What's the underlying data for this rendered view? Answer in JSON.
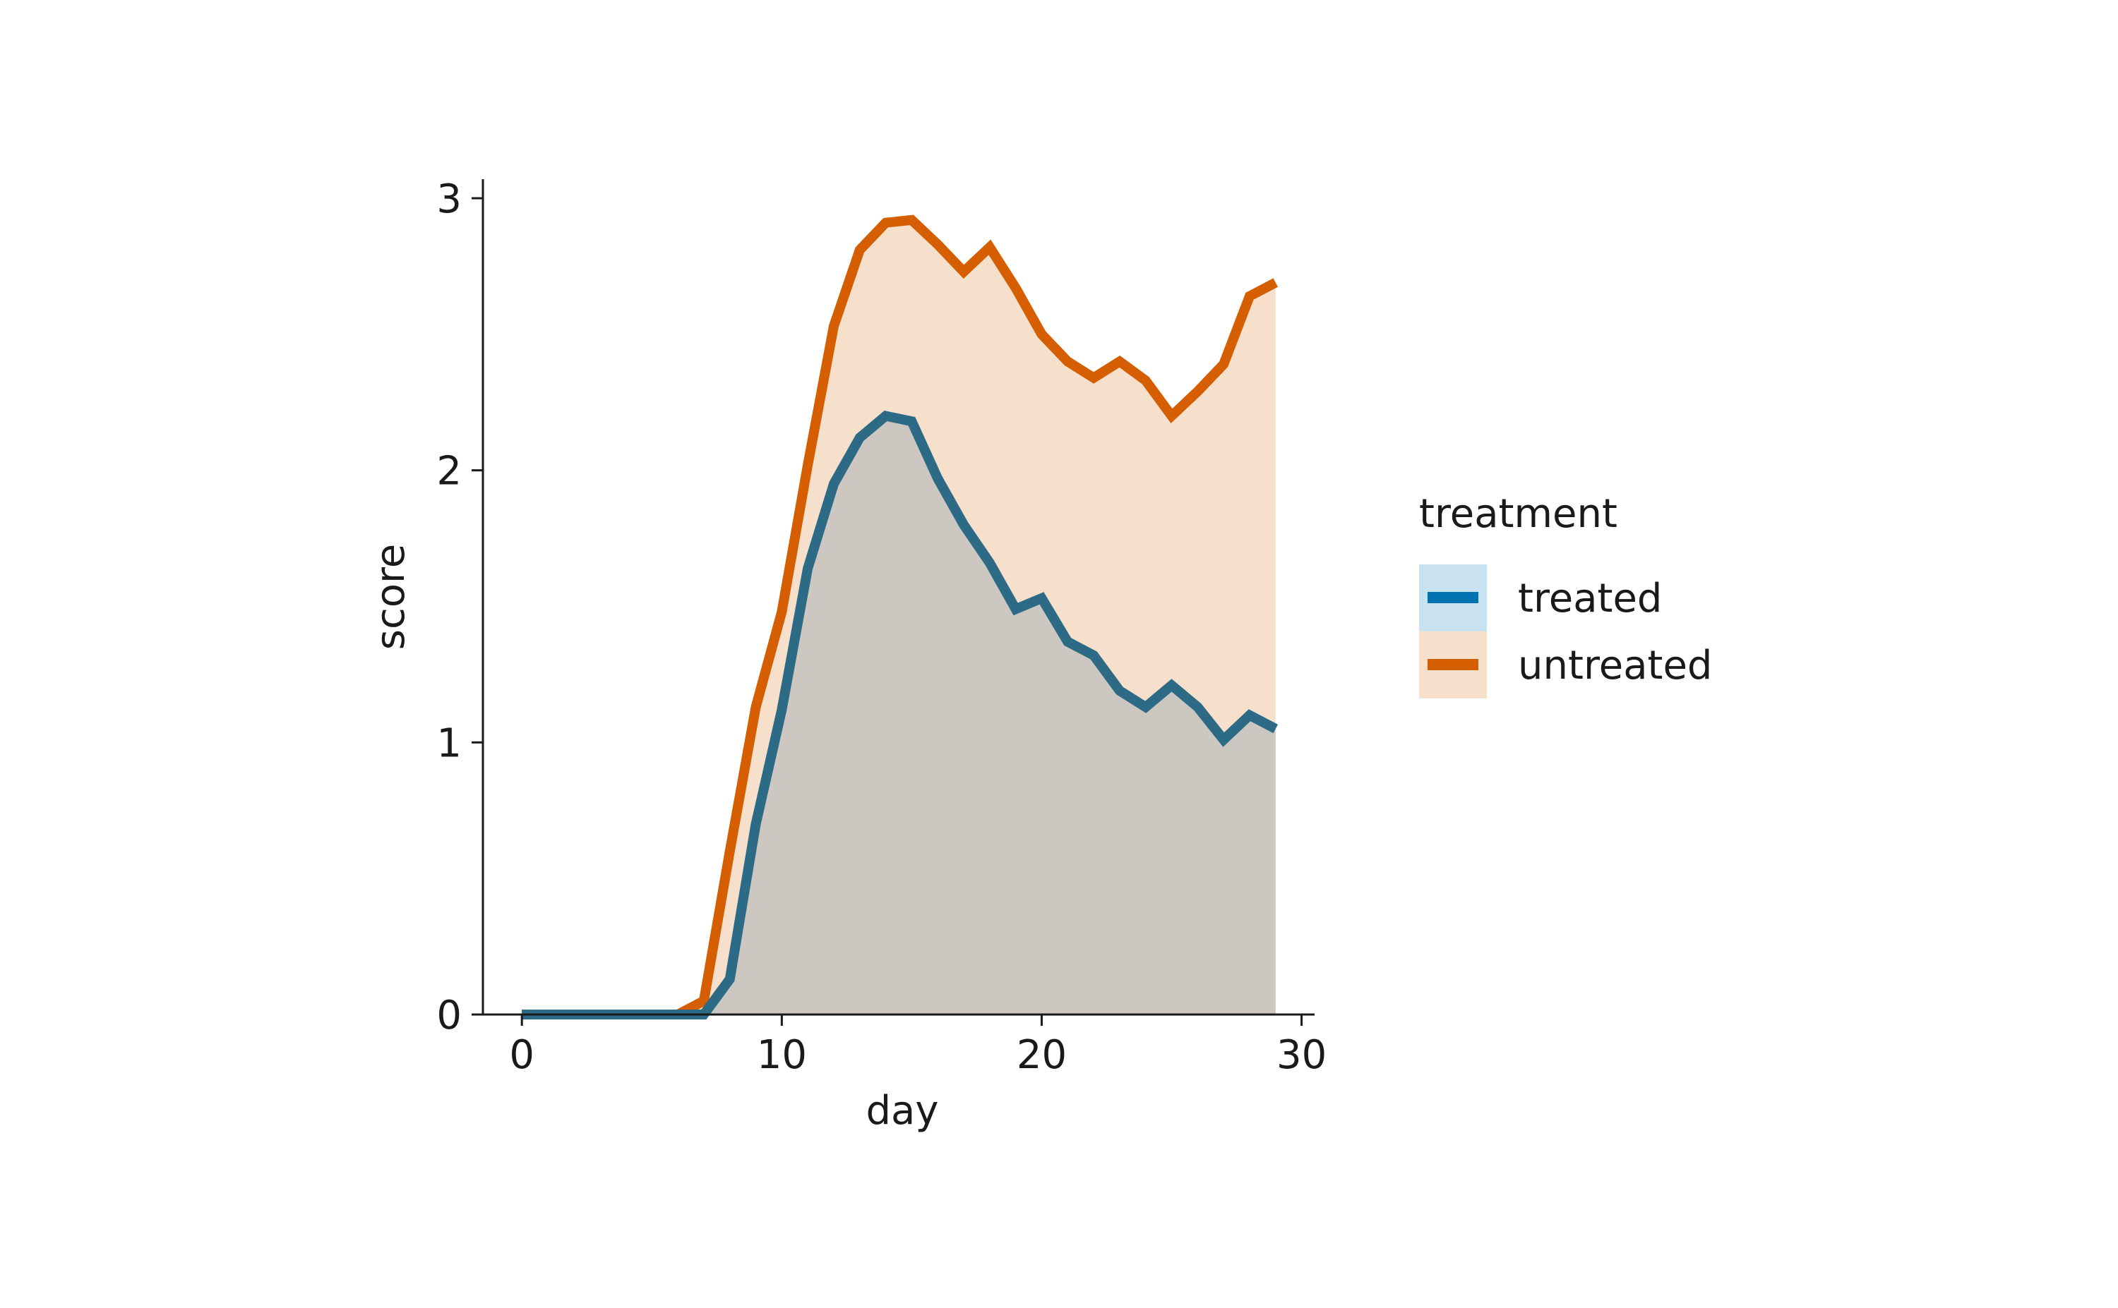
{
  "chart_data": {
    "type": "area",
    "xlabel": "day",
    "ylabel": "score",
    "xlim": [
      -1.5,
      30.5
    ],
    "ylim": [
      0,
      3.07
    ],
    "x_ticks": [
      0,
      10,
      20,
      30
    ],
    "y_ticks": [
      0,
      1,
      2,
      3
    ],
    "grid": false,
    "legend": {
      "title": "treatment",
      "placement": "right"
    },
    "x": [
      0,
      1,
      2,
      3,
      4,
      5,
      6,
      7,
      8,
      9,
      10,
      11,
      12,
      13,
      14,
      15,
      16,
      17,
      18,
      19,
      20,
      21,
      22,
      23,
      24,
      25,
      26,
      27,
      28,
      29
    ],
    "series": [
      {
        "name": "treated",
        "line_color": "#2c6a85",
        "legend_color": "#0072b2",
        "fill_color": "#c8e2f0",
        "values": [
          0,
          0,
          0,
          0,
          0,
          0,
          0,
          0,
          0.13,
          0.7,
          1.12,
          1.64,
          1.95,
          2.12,
          2.2,
          2.18,
          1.97,
          1.8,
          1.66,
          1.49,
          1.53,
          1.37,
          1.32,
          1.19,
          1.13,
          1.21,
          1.13,
          1.01,
          1.1,
          1.05
        ]
      },
      {
        "name": "untreated",
        "line_color": "#d55e00",
        "legend_color": "#d55e00",
        "fill_color": "#f6dfcb",
        "values": [
          0,
          0,
          0,
          0,
          0,
          0,
          0,
          0.05,
          0.6,
          1.13,
          1.48,
          2.02,
          2.53,
          2.81,
          2.91,
          2.92,
          2.83,
          2.73,
          2.82,
          2.67,
          2.5,
          2.4,
          2.34,
          2.4,
          2.33,
          2.2,
          2.29,
          2.39,
          2.64,
          2.69
        ]
      }
    ],
    "overlap_fill_color": "#ccc8c1"
  }
}
